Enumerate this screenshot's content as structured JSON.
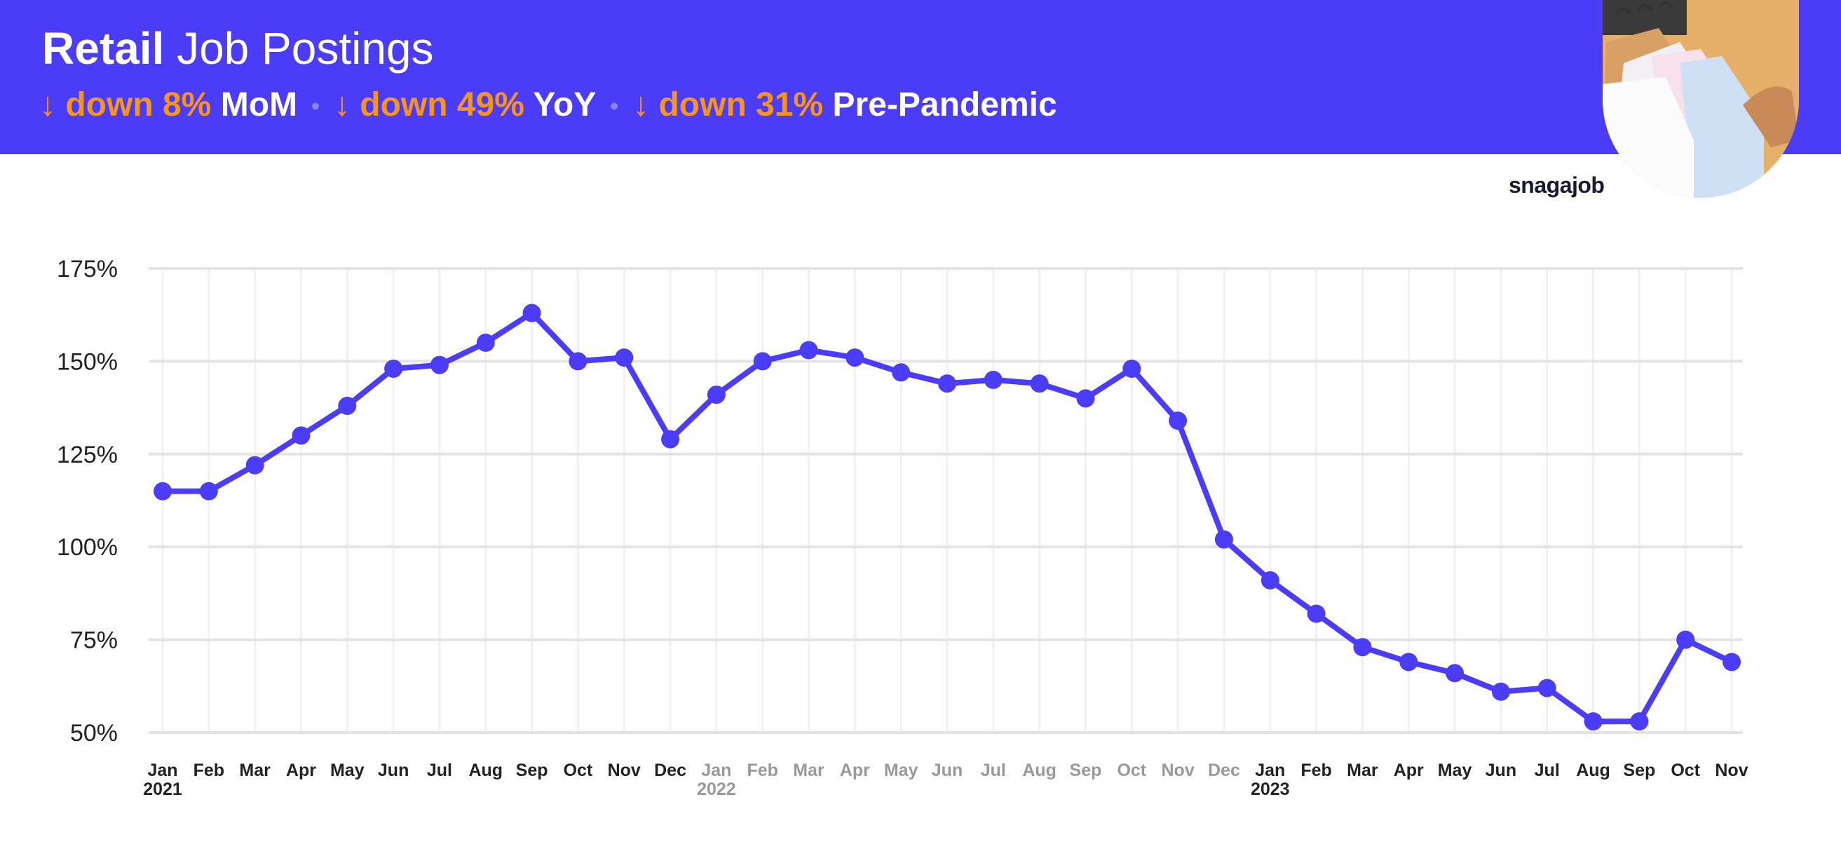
{
  "header": {
    "title_bold": "Retail",
    "title_rest": "Job Postings",
    "stats": [
      {
        "arrow": "↓",
        "change": "down 8%",
        "label": "MoM"
      },
      {
        "arrow": "↓",
        "change": "down 49%",
        "label": "YoY"
      },
      {
        "arrow": "↓",
        "change": "down 31%",
        "label": "Pre-Pandemic"
      }
    ],
    "separator": "•"
  },
  "brand": "snagajob",
  "colors": {
    "accent": "#4b3df7",
    "highlight": "#f7941d",
    "muted_label": "#999999",
    "label": "#222222"
  },
  "chart_data": {
    "type": "line",
    "x": [
      "Jan 2021",
      "Feb 2021",
      "Mar 2021",
      "Apr 2021",
      "May 2021",
      "Jun 2021",
      "Jul 2021",
      "Aug 2021",
      "Sep 2021",
      "Oct 2021",
      "Nov 2021",
      "Dec 2021",
      "Jan 2022",
      "Feb 2022",
      "Mar 2022",
      "Apr 2022",
      "May 2022",
      "Jun 2022",
      "Jul 2022",
      "Aug 2022",
      "Sep 2022",
      "Oct 2022",
      "Nov 2022",
      "Dec 2022",
      "Jan 2023",
      "Feb 2023",
      "Mar 2023",
      "Apr 2023",
      "May 2023",
      "Jun 2023",
      "Jul 2023",
      "Aug 2023",
      "Sep 2023",
      "Oct 2023",
      "Nov 2023"
    ],
    "tick_labels": [
      "Jan",
      "Feb",
      "Mar",
      "Apr",
      "May",
      "Jun",
      "Jul",
      "Aug",
      "Sep",
      "Oct",
      "Nov",
      "Dec",
      "Jan",
      "Feb",
      "Mar",
      "Apr",
      "May",
      "Jun",
      "Jul",
      "Aug",
      "Sep",
      "Oct",
      "Nov",
      "Dec",
      "Jan",
      "Feb",
      "Mar",
      "Apr",
      "May",
      "Jun",
      "Jul",
      "Aug",
      "Sep",
      "Oct",
      "Nov"
    ],
    "year_labels": [
      {
        "index": 0,
        "text": "2021"
      },
      {
        "index": 12,
        "text": "2022"
      },
      {
        "index": 24,
        "text": "2023"
      }
    ],
    "muted_range": [
      12,
      23
    ],
    "series": [
      {
        "color": "#4b3df7",
        "values": [
          115,
          115,
          122,
          130,
          138,
          148,
          149,
          155,
          163,
          150,
          151,
          129,
          141,
          150,
          153,
          151,
          147,
          144,
          145,
          144,
          140,
          148,
          134,
          102,
          91,
          82,
          73,
          69,
          66,
          61,
          62,
          53,
          53,
          75,
          69
        ]
      }
    ],
    "yticks": [
      50,
      75,
      100,
      125,
      150,
      175
    ],
    "ytick_labels": [
      "50%",
      "75%",
      "100%",
      "125%",
      "150%",
      "175%"
    ],
    "ylim": [
      50,
      175
    ],
    "grid": true,
    "title": "",
    "xlabel": "",
    "ylabel": ""
  }
}
